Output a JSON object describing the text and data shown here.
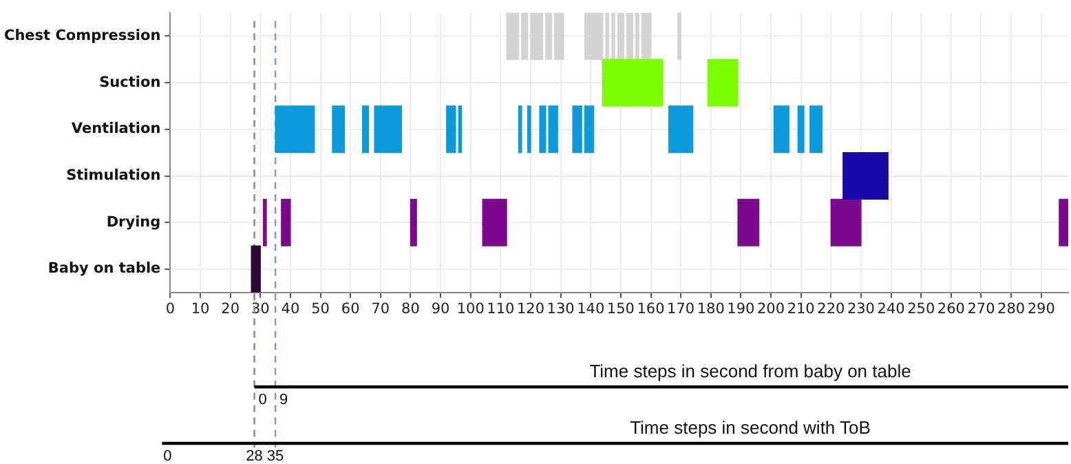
{
  "chart_data": {
    "type": "bar",
    "orientation": "horizontal",
    "grid": true,
    "categories": [
      "Chest Compression",
      "Suction",
      "Ventilation",
      "Stimulation",
      "Drying",
      "Baby on table"
    ],
    "xlim": [
      0,
      299
    ],
    "xticks": [
      0,
      10,
      20,
      30,
      40,
      50,
      60,
      70,
      80,
      90,
      100,
      110,
      120,
      130,
      140,
      150,
      160,
      170,
      180,
      190,
      200,
      210,
      220,
      230,
      240,
      250,
      260,
      270,
      280,
      290
    ],
    "series": [
      {
        "colors": [
          "#d3d3d3",
          "#7cfc00",
          "#0b9bdc",
          "#1a0aa8",
          "#7b0a8e",
          "#2a0a3a"
        ],
        "base": [
          112,
          144,
          35,
          224,
          31,
          27
        ],
        "values": [
          4,
          20,
          13,
          15,
          1,
          3
        ]
      },
      {
        "colors": [
          "#d3d3d3",
          "#7cfc00",
          "#0b9bdc",
          "#1a0aa8",
          "#7b0a8e",
          "#2a0a3a"
        ],
        "base": [
          117,
          179,
          54,
          null,
          37,
          null
        ],
        "values": [
          2,
          10,
          4,
          null,
          3,
          null
        ]
      },
      {
        "colors": [
          "#d3d3d3",
          "#7cfc00",
          "#0b9bdc",
          "#1a0aa8",
          "#7b0a8e",
          "#2a0a3a"
        ],
        "base": [
          120,
          null,
          64,
          null,
          80,
          null
        ],
        "values": [
          4,
          null,
          2,
          null,
          2,
          null
        ]
      },
      {
        "colors": [
          "#d3d3d3",
          "#7cfc00",
          "#0b9bdc",
          "#1a0aa8",
          "#7b0a8e",
          "#2a0a3a"
        ],
        "base": [
          125,
          null,
          68,
          null,
          104,
          null
        ],
        "values": [
          2,
          null,
          9,
          null,
          8,
          null
        ]
      },
      {
        "colors": [
          "#d3d3d3",
          "#7cfc00",
          "#0b9bdc",
          "#1a0aa8",
          "#7b0a8e",
          "#2a0a3a"
        ],
        "base": [
          128,
          null,
          92,
          null,
          189,
          null
        ],
        "values": [
          3,
          null,
          3,
          null,
          7,
          null
        ]
      },
      {
        "colors": [
          "#d3d3d3",
          "#7cfc00",
          "#0b9bdc",
          "#1a0aa8",
          "#7b0a8e",
          "#2a0a3a"
        ],
        "base": [
          138,
          null,
          96,
          null,
          220,
          null
        ],
        "values": [
          6,
          null,
          1,
          null,
          10,
          null
        ]
      },
      {
        "colors": [
          "#d3d3d3",
          "#7cfc00",
          "#0b9bdc",
          "#1a0aa8",
          "#7b0a8e",
          "#2a0a3a"
        ],
        "base": [
          145,
          null,
          116,
          null,
          296,
          null
        ],
        "values": [
          1,
          null,
          1,
          null,
          3,
          null
        ]
      },
      {
        "colors": [
          "#d3d3d3",
          "#7cfc00",
          "#0b9bdc",
          "#1a0aa8",
          "#7b0a8e",
          "#2a0a3a"
        ],
        "base": [
          147,
          null,
          119,
          null,
          null,
          null
        ],
        "values": [
          1,
          null,
          1,
          null,
          null,
          null
        ]
      },
      {
        "colors": [
          "#d3d3d3",
          "#7cfc00",
          "#0b9bdc",
          "#1a0aa8",
          "#7b0a8e",
          "#2a0a3a"
        ],
        "base": [
          149,
          null,
          123,
          null,
          null,
          null
        ],
        "values": [
          2,
          null,
          2,
          null,
          null,
          null
        ]
      },
      {
        "colors": [
          "#d3d3d3",
          "#7cfc00",
          "#0b9bdc",
          "#1a0aa8",
          "#7b0a8e",
          "#2a0a3a"
        ],
        "base": [
          152,
          null,
          126,
          null,
          null,
          null
        ],
        "values": [
          2,
          null,
          3,
          null,
          null,
          null
        ]
      },
      {
        "colors": [
          "#d3d3d3",
          "#7cfc00",
          "#0b9bdc",
          "#1a0aa8",
          "#7b0a8e",
          "#2a0a3a"
        ],
        "base": [
          155,
          null,
          134,
          null,
          null,
          null
        ],
        "values": [
          1,
          null,
          3,
          null,
          null,
          null
        ]
      },
      {
        "colors": [
          "#d3d3d3",
          "#7cfc00",
          "#0b9bdc",
          "#1a0aa8",
          "#7b0a8e",
          "#2a0a3a"
        ],
        "base": [
          157,
          null,
          138,
          null,
          null,
          null
        ],
        "values": [
          3,
          null,
          3,
          null,
          null,
          null
        ]
      },
      {
        "colors": [
          "#d3d3d3",
          "#7cfc00",
          "#0b9bdc",
          "#1a0aa8",
          "#7b0a8e",
          "#2a0a3a"
        ],
        "base": [
          169,
          null,
          166,
          null,
          null,
          null
        ],
        "values": [
          1,
          null,
          8,
          null,
          null,
          null
        ]
      },
      {
        "colors": [
          "#d3d3d3",
          "#7cfc00",
          "#0b9bdc",
          "#1a0aa8",
          "#7b0a8e",
          "#2a0a3a"
        ],
        "base": [
          null,
          null,
          201,
          null,
          null,
          null
        ],
        "values": [
          null,
          null,
          5,
          null,
          null,
          null
        ]
      },
      {
        "colors": [
          "#d3d3d3",
          "#7cfc00",
          "#0b9bdc",
          "#1a0aa8",
          "#7b0a8e",
          "#2a0a3a"
        ],
        "base": [
          null,
          null,
          209,
          null,
          null,
          null
        ],
        "values": [
          null,
          null,
          2,
          null,
          null,
          null
        ]
      },
      {
        "colors": [
          "#d3d3d3",
          "#7cfc00",
          "#0b9bdc",
          "#1a0aa8",
          "#7b0a8e",
          "#2a0a3a"
        ],
        "base": [
          null,
          null,
          213,
          null,
          null,
          null
        ],
        "values": [
          null,
          null,
          4,
          null,
          null,
          null
        ]
      }
    ],
    "ref_lines": [
      {
        "axis": "x",
        "value": 28,
        "color": "#8c8c8c",
        "line_style": "dashed"
      },
      {
        "axis": "x",
        "value": 35,
        "color": "#7b9fd4",
        "line_style": "dashed"
      }
    ],
    "annotations": [
      "Time steps in second from baby on table",
      {
        "text": "0",
        "x": 28
      },
      {
        "text": "9",
        "x": 35
      },
      "Time steps in second with ToB",
      "0",
      "28",
      "35"
    ]
  }
}
